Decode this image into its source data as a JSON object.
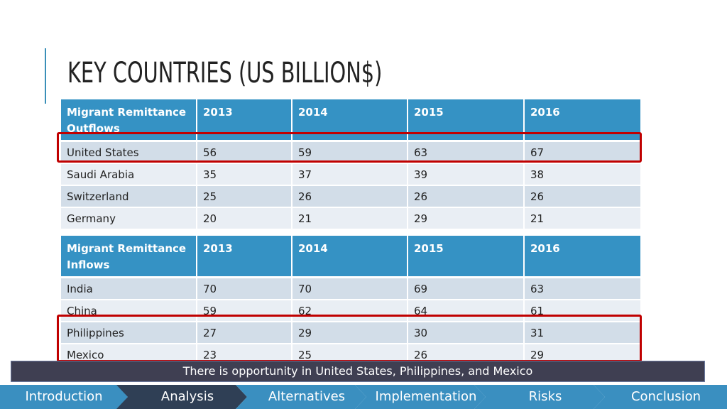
{
  "title": "KEY COUNTRIES (US BILLION$)",
  "outflows": {
    "header": [
      "Migrant Remittance Outflows",
      "2013",
      "2014",
      "2015",
      "2016"
    ],
    "rows": [
      [
        "United States",
        "56",
        "59",
        "63",
        "67"
      ],
      [
        "Saudi Arabia",
        "35",
        "37",
        "39",
        "38"
      ],
      [
        "Switzerland",
        "25",
        "26",
        "26",
        "26"
      ],
      [
        "Germany",
        "20",
        "21",
        "29",
        "21"
      ]
    ]
  },
  "inflows": {
    "header": [
      "Migrant Remittance Inflows",
      "2013",
      "2014",
      "2015",
      "2016"
    ],
    "rows": [
      [
        "India",
        "70",
        "70",
        "69",
        "63"
      ],
      [
        "China",
        "59",
        "62",
        "64",
        "61"
      ],
      [
        "Philippines",
        "27",
        "29",
        "30",
        "31"
      ],
      [
        "Mexico",
        "23",
        "25",
        "26",
        "29"
      ]
    ]
  },
  "banner": "There is opportunity in United States, Philippines, and Mexico",
  "nav": {
    "steps": [
      {
        "label": "Introduction",
        "active": false
      },
      {
        "label": "Analysis",
        "active": true
      },
      {
        "label": "Alternatives",
        "active": false
      },
      {
        "label": "Implementation",
        "active": false
      },
      {
        "label": "Risks",
        "active": false
      },
      {
        "label": "Conclusion",
        "active": false
      }
    ]
  },
  "colors": {
    "header_blue": "#3592c4",
    "highlight_red": "#c00000",
    "nav_blue": "#3a8fc0",
    "nav_active": "#2f3f55"
  }
}
